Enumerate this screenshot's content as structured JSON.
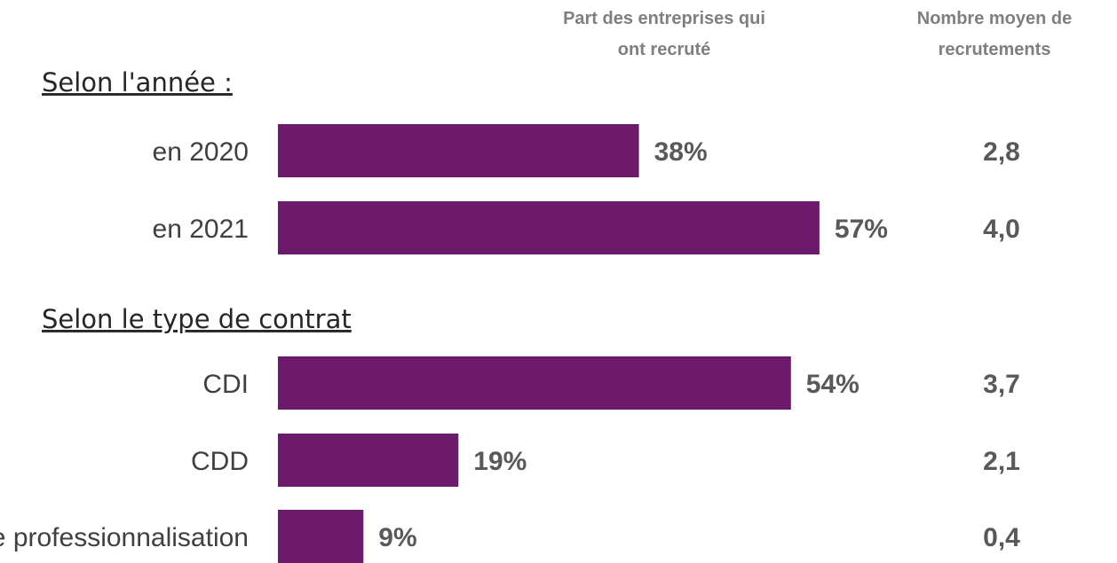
{
  "chart_data": {
    "type": "bar",
    "orientation": "horizontal",
    "column_headers": {
      "share": [
        "Part des entreprises qui",
        "ont recruté"
      ],
      "average": [
        "Nombre moyen de",
        "recrutements"
      ]
    },
    "groups": [
      {
        "title": "Selon l'année :",
        "rows": [
          {
            "category": "en 2020",
            "value": 38,
            "value_label": "38%",
            "average_label": "2,8"
          },
          {
            "category": "en 2021",
            "value": 57,
            "value_label": "57%",
            "average_label": "4,0"
          }
        ]
      },
      {
        "title": "Selon le type de contrat",
        "rows": [
          {
            "category": "CDI",
            "value": 54,
            "value_label": "54%",
            "average_label": "3,7"
          },
          {
            "category": "CDD",
            "value": 19,
            "value_label": "19%",
            "average_label": "2,1"
          },
          {
            "category": "Contrat de professionnalisation",
            "value": 9,
            "value_label": "9%",
            "average_label": "0,4"
          }
        ]
      }
    ],
    "unit": "%",
    "xlim": [
      0,
      100
    ],
    "bar_color": "#6d1a6d"
  }
}
